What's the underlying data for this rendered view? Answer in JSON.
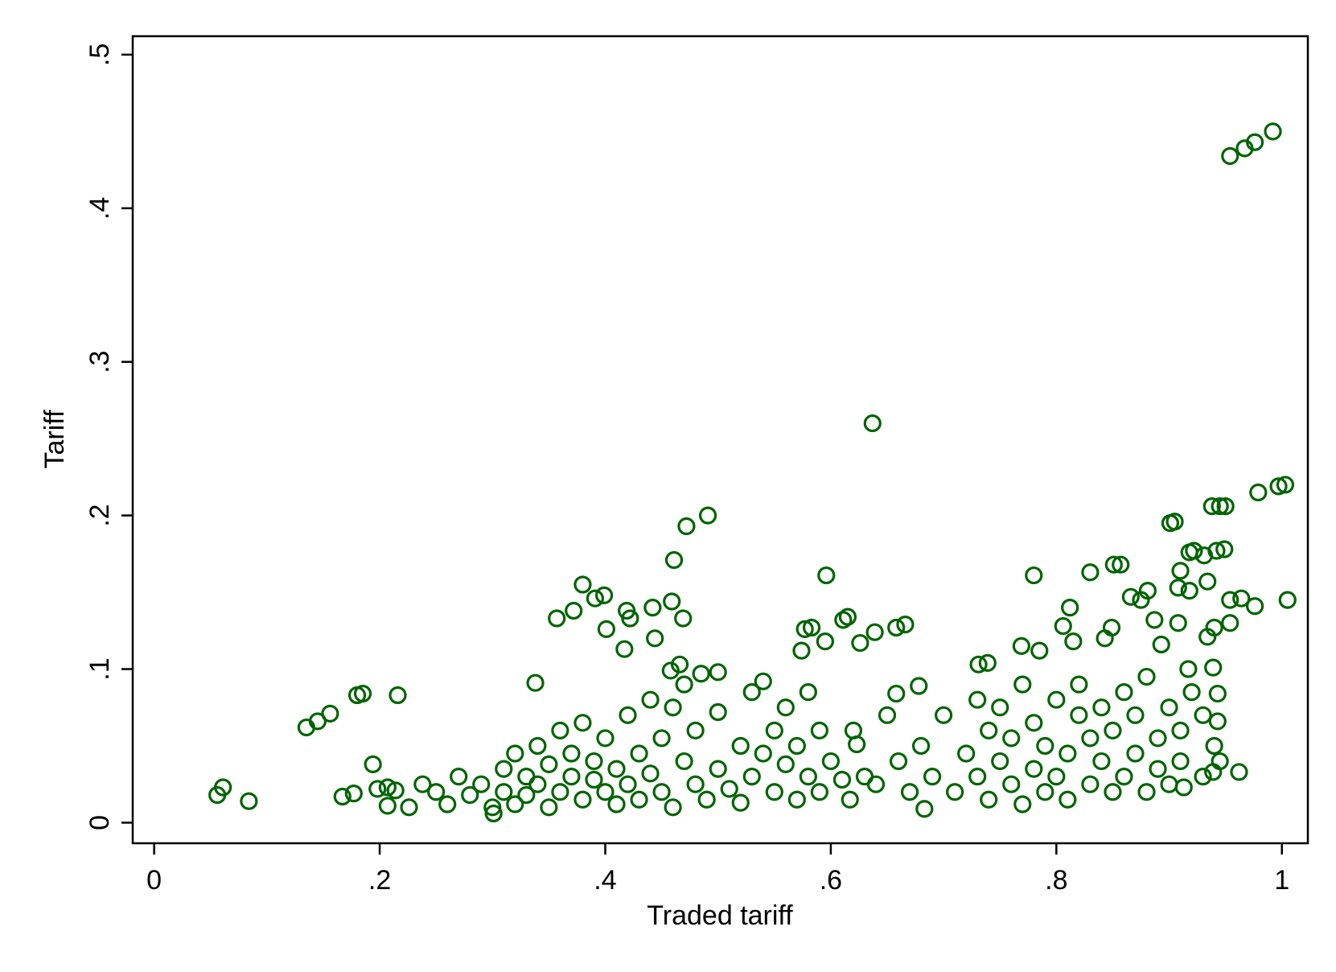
{
  "chart_data": {
    "type": "scatter",
    "x_label": "Traded tariff",
    "y_label": "Tariff",
    "color": "#006400",
    "grid": false,
    "xlim": [
      -0.019,
      1.023
    ],
    "ylim": [
      -0.0134,
      0.512
    ],
    "xticks": [
      0,
      {
        "value": 0.2,
        "label": ".2"
      },
      {
        "value": 0.4,
        "label": ".4"
      },
      {
        "value": 0.6,
        "label": ".6"
      },
      {
        "value": 0.8,
        "label": ".8"
      },
      1
    ],
    "yticks": [
      0,
      {
        "value": 0.1,
        "label": ".1"
      },
      {
        "value": 0.2,
        "label": ".2"
      },
      {
        "value": 0.3,
        "label": ".3"
      },
      {
        "value": 0.4,
        "label": ".4"
      },
      {
        "value": 0.5,
        "label": ".5"
      }
    ],
    "x": [
      0.061,
      0.056,
      0.084,
      0.135,
      0.145,
      0.156,
      0.18,
      0.185,
      0.216,
      0.194,
      0.167,
      0.177,
      0.198,
      0.207,
      0.214,
      0.207,
      0.226,
      0.238,
      0.954,
      0.967,
      0.976,
      0.992,
      0.637,
      0.491,
      0.472,
      0.461,
      0.596,
      0.78,
      0.979,
      0.997,
      1.003,
      0.938,
      0.945,
      0.95,
      0.901,
      0.905,
      1.005,
      0.976,
      0.964,
      0.954,
      0.942,
      0.949,
      0.918,
      0.91,
      0.922,
      0.931,
      0.851,
      0.857,
      0.83,
      0.908,
      0.918,
      0.934,
      0.38,
      0.372,
      0.357,
      0.391,
      0.399,
      0.401,
      0.419,
      0.422,
      0.442,
      0.459,
      0.469,
      0.444,
      0.417,
      0.577,
      0.583,
      0.611,
      0.615,
      0.626,
      0.639,
      0.658,
      0.666,
      0.574,
      0.595,
      0.812,
      0.806,
      0.815,
      0.769,
      0.866,
      0.875,
      0.881,
      0.887,
      0.893,
      0.849,
      0.843,
      0.908,
      0.934,
      0.954,
      0.94,
      0.917,
      0.939,
      0.943,
      0.943,
      0.939,
      0.945,
      0.962,
      0.913,
      0.739,
      0.731,
      0.785,
      0.658,
      0.678,
      0.485,
      0.5,
      0.338,
      0.458,
      0.466,
      0.683,
      0.617,
      0.623,
      0.301,
      0.25,
      0.26,
      0.27,
      0.28,
      0.29,
      0.3,
      0.31,
      0.31,
      0.32,
      0.32,
      0.33,
      0.33,
      0.34,
      0.34,
      0.35,
      0.35,
      0.36,
      0.36,
      0.37,
      0.37,
      0.38,
      0.38,
      0.39,
      0.39,
      0.4,
      0.4,
      0.41,
      0.41,
      0.42,
      0.42,
      0.43,
      0.43,
      0.44,
      0.44,
      0.45,
      0.45,
      0.46,
      0.46,
      0.47,
      0.47,
      0.48,
      0.48,
      0.49,
      0.5,
      0.5,
      0.51,
      0.52,
      0.52,
      0.53,
      0.53,
      0.54,
      0.54,
      0.55,
      0.55,
      0.56,
      0.56,
      0.57,
      0.57,
      0.58,
      0.58,
      0.59,
      0.59,
      0.6,
      0.61,
      0.62,
      0.63,
      0.64,
      0.65,
      0.66,
      0.67,
      0.68,
      0.69,
      0.7,
      0.71,
      0.72,
      0.73,
      0.73,
      0.74,
      0.74,
      0.75,
      0.75,
      0.76,
      0.76,
      0.77,
      0.77,
      0.78,
      0.78,
      0.79,
      0.79,
      0.8,
      0.8,
      0.81,
      0.81,
      0.82,
      0.82,
      0.83,
      0.83,
      0.84,
      0.84,
      0.85,
      0.85,
      0.86,
      0.86,
      0.87,
      0.87,
      0.88,
      0.88,
      0.89,
      0.89,
      0.9,
      0.9,
      0.91,
      0.91,
      0.92,
      0.93,
      0.93,
      0.94
    ],
    "y": [
      0.023,
      0.018,
      0.014,
      0.062,
      0.066,
      0.071,
      0.083,
      0.084,
      0.083,
      0.038,
      0.017,
      0.019,
      0.022,
      0.023,
      0.021,
      0.011,
      0.01,
      0.025,
      0.434,
      0.439,
      0.443,
      0.45,
      0.26,
      0.2,
      0.193,
      0.171,
      0.161,
      0.161,
      0.215,
      0.219,
      0.22,
      0.206,
      0.206,
      0.206,
      0.195,
      0.196,
      0.145,
      0.141,
      0.146,
      0.145,
      0.177,
      0.178,
      0.176,
      0.164,
      0.177,
      0.174,
      0.168,
      0.168,
      0.163,
      0.153,
      0.151,
      0.157,
      0.155,
      0.138,
      0.133,
      0.146,
      0.148,
      0.126,
      0.138,
      0.133,
      0.14,
      0.144,
      0.133,
      0.12,
      0.113,
      0.126,
      0.127,
      0.132,
      0.134,
      0.117,
      0.124,
      0.127,
      0.129,
      0.112,
      0.118,
      0.14,
      0.128,
      0.118,
      0.115,
      0.147,
      0.145,
      0.151,
      0.132,
      0.116,
      0.127,
      0.12,
      0.13,
      0.121,
      0.13,
      0.127,
      0.1,
      0.101,
      0.084,
      0.066,
      0.033,
      0.04,
      0.033,
      0.023,
      0.104,
      0.103,
      0.112,
      0.084,
      0.089,
      0.097,
      0.098,
      0.091,
      0.099,
      0.103,
      0.009,
      0.015,
      0.051,
      0.006,
      0.02,
      0.012,
      0.03,
      0.018,
      0.025,
      0.01,
      0.035,
      0.02,
      0.045,
      0.012,
      0.03,
      0.018,
      0.05,
      0.025,
      0.01,
      0.038,
      0.06,
      0.02,
      0.03,
      0.045,
      0.015,
      0.065,
      0.028,
      0.04,
      0.02,
      0.055,
      0.035,
      0.012,
      0.07,
      0.025,
      0.045,
      0.015,
      0.08,
      0.032,
      0.055,
      0.02,
      0.075,
      0.01,
      0.04,
      0.09,
      0.025,
      0.06,
      0.015,
      0.035,
      0.072,
      0.022,
      0.05,
      0.013,
      0.085,
      0.03,
      0.045,
      0.092,
      0.02,
      0.06,
      0.038,
      0.075,
      0.015,
      0.05,
      0.085,
      0.03,
      0.06,
      0.02,
      0.04,
      0.028,
      0.06,
      0.03,
      0.025,
      0.07,
      0.04,
      0.02,
      0.05,
      0.03,
      0.07,
      0.02,
      0.045,
      0.08,
      0.03,
      0.015,
      0.06,
      0.04,
      0.075,
      0.025,
      0.055,
      0.012,
      0.09,
      0.035,
      0.065,
      0.02,
      0.05,
      0.08,
      0.03,
      0.045,
      0.015,
      0.07,
      0.09,
      0.025,
      0.055,
      0.04,
      0.075,
      0.02,
      0.06,
      0.085,
      0.03,
      0.045,
      0.07,
      0.02,
      0.095,
      0.055,
      0.035,
      0.075,
      0.025,
      0.06,
      0.04,
      0.085,
      0.03,
      0.07,
      0.05
    ]
  }
}
